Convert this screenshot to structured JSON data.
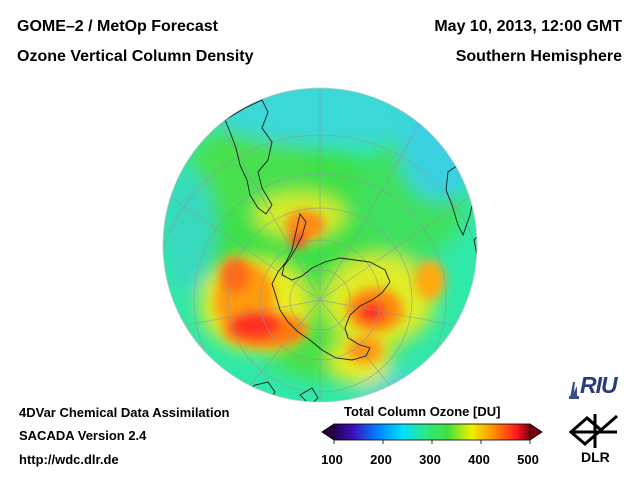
{
  "header": {
    "title_left_1": "GOME–2 / MetOp Forecast",
    "title_left_2": "Ozone Vertical Column Density",
    "title_right_1": "May 10, 2013, 12:00 GMT",
    "title_right_2": "Southern Hemisphere"
  },
  "footer": {
    "line1": "4DVar Chemical Data Assimilation",
    "line2": "SACADA Version 2.4",
    "line3": "http://wdc.dlr.de"
  },
  "colorbar": {
    "title": "Total Column Ozone [DU]",
    "ticks": [
      "100",
      "200",
      "300",
      "400",
      "500"
    ],
    "min": 100,
    "max": 500
  },
  "logos": {
    "riu": "RIU",
    "dlr": "DLR"
  },
  "map": {
    "projection": "polar orthographic",
    "hemisphere": "Southern",
    "center": "South Pole",
    "variable": "Total column ozone",
    "units": "DU"
  },
  "colors": {
    "background": "#ffffff",
    "text": "#000000",
    "colorbar_stops": [
      "#1b0033",
      "#3a00a0",
      "#0050ff",
      "#00c8ff",
      "#20e8b0",
      "#30e040",
      "#f2f000",
      "#ff9900",
      "#ff2020",
      "#7a0010"
    ]
  }
}
